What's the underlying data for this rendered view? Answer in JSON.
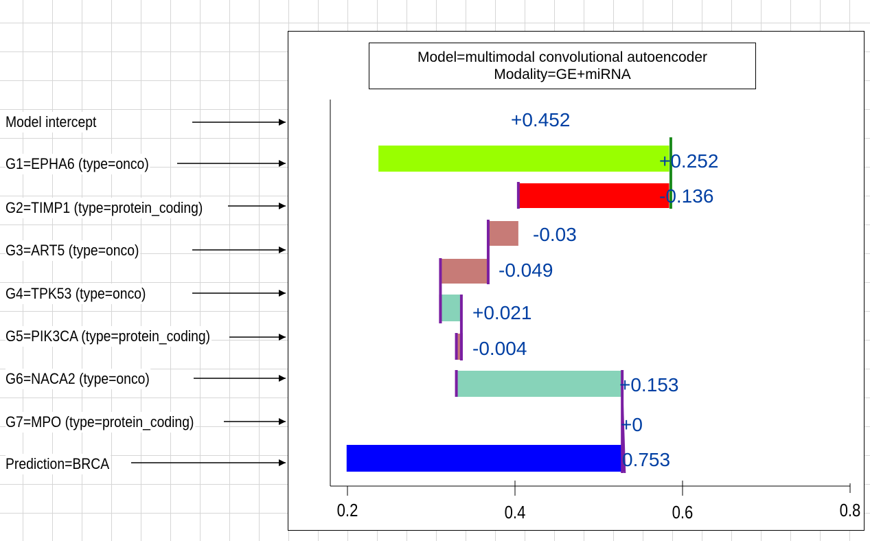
{
  "title": {
    "line1": "Model=multimodal convolutional autoencoder",
    "line2": "Modality=GE+miRNA"
  },
  "rows": [
    {
      "label": "Model intercept",
      "value_label": "+0.452"
    },
    {
      "label": "G1=EPHA6 (type=onco)",
      "value_label": "+0.252"
    },
    {
      "label": "G2=TIMP1 (type=protein_coding)",
      "value_label": "-0.136"
    },
    {
      "label": "G3=ART5 (type=onco)",
      "value_label": "-0.03"
    },
    {
      "label": "G4=TPK53 (type=onco)",
      "value_label": "-0.049"
    },
    {
      "label": "G5=PIK3CA (type=protein_coding)",
      "value_label": "+0.021"
    },
    {
      "label": "G6=NACA2 (type=onco)",
      "value_label": "-0.004"
    },
    {
      "label": "G7=MPO (type=protein_coding)",
      "value_label": "+0.153"
    },
    {
      "label": "Prediction=BRCA",
      "value_label": "+0"
    }
  ],
  "final_value_label": "0.753",
  "chart_data": {
    "type": "bar",
    "subtype": "waterfall",
    "title": "Model=multimodal convolutional autoencoder / Modality=GE+miRNA",
    "xlim": [
      0.18,
      0.82
    ],
    "xticks": [
      {
        "value": 0.2,
        "label": "0.2"
      },
      {
        "value": 0.4,
        "label": "0.4"
      },
      {
        "value": 0.6,
        "label": "0.6"
      },
      {
        "value": 0.8,
        "label": "0.8"
      }
    ],
    "bars": [
      {
        "start": 0.237,
        "end": 0.584,
        "color": "#99ff00"
      },
      {
        "start": 0.404,
        "end": 0.584,
        "color": "#ff0000"
      },
      {
        "start": 0.368,
        "end": 0.404,
        "color": "#c77b77"
      },
      {
        "start": 0.311,
        "end": 0.368,
        "color": "#c77b77"
      },
      {
        "start": 0.311,
        "end": 0.336,
        "color": "#87d3b9"
      },
      {
        "start": 0.33,
        "end": 0.336,
        "color": "#c77b77"
      },
      {
        "start": 0.33,
        "end": 0.528,
        "color": "#87d3b9"
      },
      {
        "start": 0.199,
        "end": 0.53,
        "color": "#0000ff"
      }
    ],
    "connectors": [
      {
        "x": 0.586,
        "color": "#1b8a1b"
      },
      {
        "x": 0.404,
        "color": "#7a1fa2"
      },
      {
        "x": 0.368,
        "color": "#7a1fa2"
      },
      {
        "x": 0.311,
        "color": "#7a1fa2"
      },
      {
        "x": 0.336,
        "color": "#7a1fa2"
      },
      {
        "x": 0.33,
        "color": "#7a1fa2"
      },
      {
        "x": 0.528,
        "color": "#7a1fa2"
      }
    ],
    "value_label_color": "#003fa3"
  }
}
